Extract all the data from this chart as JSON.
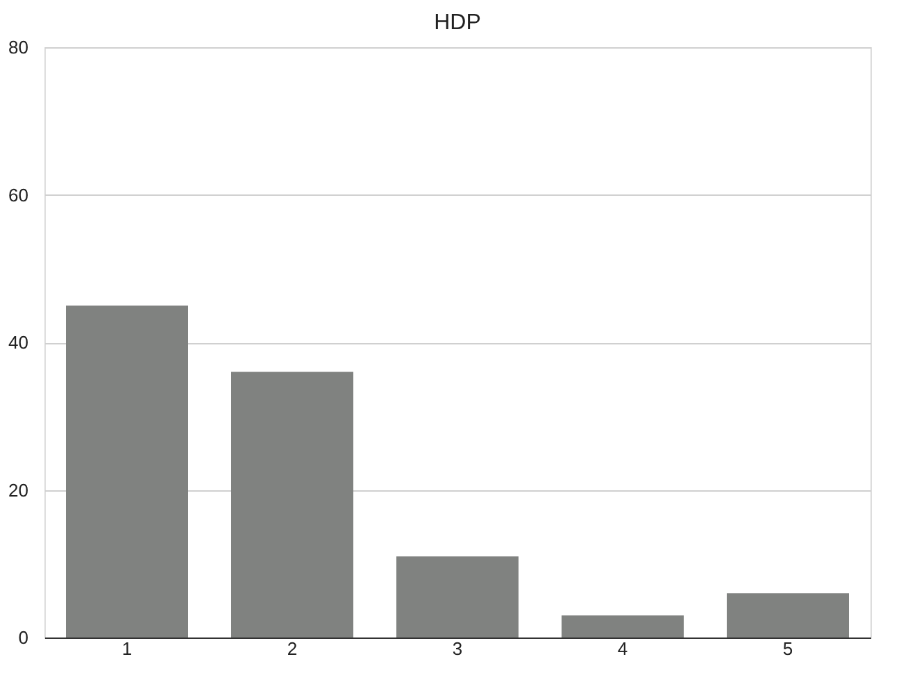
{
  "chart_data": {
    "type": "bar",
    "title": "HDP",
    "categories": [
      "1",
      "2",
      "3",
      "4",
      "5"
    ],
    "values": [
      45,
      36,
      11,
      3,
      6
    ],
    "color": "#808280",
    "ylim": [
      0,
      80
    ],
    "yticks": [
      0,
      20,
      40,
      60,
      80
    ],
    "grid": "y"
  }
}
